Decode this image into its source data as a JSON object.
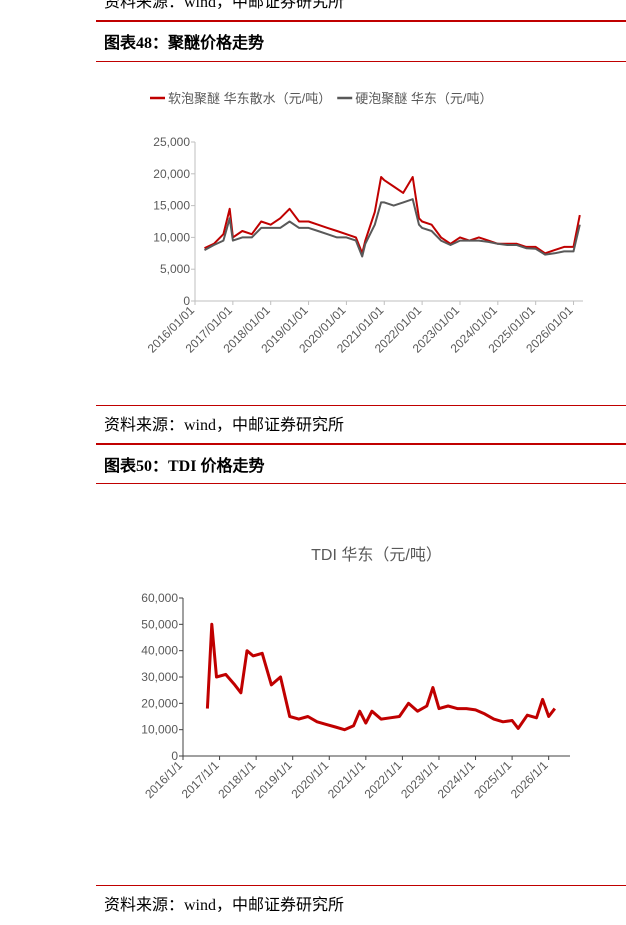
{
  "top_source": "资料来源：wind，中邮证券研究所",
  "captions": [
    "图表48：聚醚价格走势",
    "图表50：TDI 价格走势"
  ],
  "sources": [
    "资料来源：wind，中邮证券研究所",
    "资料来源：wind，中邮证券研究所"
  ],
  "chart_data": [
    {
      "type": "line",
      "x": [
        "2016/04/01",
        "2016/07/01",
        "2016/10/01",
        "2016/12/01",
        "2017/01/01",
        "2017/04/01",
        "2017/07/01",
        "2017/10/01",
        "2018/01/01",
        "2018/04/01",
        "2018/07/01",
        "2018/10/01",
        "2019/01/01",
        "2019/04/01",
        "2019/07/01",
        "2019/10/01",
        "2020/01/01",
        "2020/04/01",
        "2020/06/01",
        "2020/07/01",
        "2020/10/01",
        "2020/12/01",
        "2021/01/01",
        "2021/04/01",
        "2021/07/01",
        "2021/10/01",
        "2021/12/01",
        "2022/01/01",
        "2022/04/01",
        "2022/07/01",
        "2022/10/01",
        "2023/01/01",
        "2023/04/01",
        "2023/07/01",
        "2023/10/01",
        "2024/01/01",
        "2024/04/01",
        "2024/07/01",
        "2024/10/01",
        "2025/01/01",
        "2025/04/01",
        "2025/07/01",
        "2025/10/01",
        "2026/01/01",
        "2026/03/01"
      ],
      "series": [
        {
          "name": "软泡聚醚 华东散水（元/吨）",
          "color": "#c00000",
          "values": [
            8300,
            9000,
            10500,
            14500,
            10000,
            11000,
            10500,
            12500,
            12000,
            13000,
            14500,
            12500,
            12500,
            12000,
            11500,
            11000,
            10500,
            10000,
            7500,
            9500,
            14000,
            19500,
            19000,
            18000,
            17000,
            19500,
            13000,
            12500,
            12000,
            10000,
            9000,
            10000,
            9500,
            10000,
            9500,
            9000,
            9000,
            9000,
            8500,
            8500,
            7500,
            8000,
            8500,
            8500,
            13500
          ]
        },
        {
          "name": "硬泡聚醚 华东（元/吨）",
          "color": "#595959",
          "values": [
            8000,
            8800,
            9500,
            13000,
            9500,
            10000,
            10000,
            11500,
            11500,
            11500,
            12500,
            11500,
            11500,
            11000,
            10500,
            10000,
            10000,
            9500,
            7000,
            9000,
            12000,
            15500,
            15500,
            15000,
            15500,
            16000,
            12000,
            11500,
            11000,
            9500,
            8800,
            9500,
            9500,
            9500,
            9300,
            9000,
            8800,
            8800,
            8300,
            8200,
            7300,
            7500,
            7800,
            7800,
            12000
          ]
        }
      ],
      "xlim": [
        "2016/01/01",
        "2026/04/01"
      ],
      "xticks": [
        "2016/01/01",
        "2017/01/01",
        "2018/01/01",
        "2019/01/01",
        "2020/01/01",
        "2021/01/01",
        "2022/01/01",
        "2023/01/01",
        "2024/01/01",
        "2025/01/01",
        "2026/01/01"
      ],
      "ylim": [
        0,
        25000
      ],
      "yticks": [
        0,
        {
          "value": 5000,
          "label": "5,000"
        },
        {
          "value": 10000,
          "label": "10,000"
        },
        {
          "value": 15000,
          "label": "15,000"
        },
        {
          "value": 20000,
          "label": "20,000"
        },
        {
          "value": 25000,
          "label": "25,000"
        }
      ],
      "grid": false,
      "legend": "top"
    },
    {
      "type": "line",
      "title": "TDI 华东（元/吨）",
      "x": [
        "2016/9/1",
        "2016/10/15",
        "2016/12/1",
        "2017/3/1",
        "2017/6/1",
        "2017/8/1",
        "2017/10/1",
        "2017/12/1",
        "2018/3/1",
        "2018/6/1",
        "2018/9/1",
        "2018/12/1",
        "2019/3/1",
        "2019/6/1",
        "2019/9/1",
        "2019/12/1",
        "2020/3/1",
        "2020/6/1",
        "2020/9/1",
        "2020/11/1",
        "2021/1/1",
        "2021/3/1",
        "2021/6/1",
        "2021/9/1",
        "2021/12/1",
        "2022/3/1",
        "2022/6/1",
        "2022/9/1",
        "2022/11/1",
        "2023/1/1",
        "2023/4/1",
        "2023/7/1",
        "2023/10/1",
        "2024/1/1",
        "2024/4/1",
        "2024/7/1",
        "2024/10/1",
        "2025/1/1",
        "2025/3/1",
        "2025/6/1",
        "2025/9/1",
        "2025/11/1",
        "2026/1/1",
        "2026/3/1"
      ],
      "series": [
        {
          "color": "#c00000",
          "values": [
            18000,
            50000,
            30000,
            31000,
            27000,
            24000,
            40000,
            38000,
            39000,
            27000,
            30000,
            15000,
            14000,
            15000,
            13000,
            12000,
            11000,
            10000,
            11500,
            17000,
            12500,
            17000,
            14000,
            14500,
            15000,
            20000,
            17000,
            19000,
            26000,
            18000,
            19000,
            18000,
            18000,
            17500,
            16000,
            14000,
            13000,
            13500,
            10500,
            15500,
            14500,
            21500,
            15000,
            18000
          ]
        }
      ],
      "xlim": [
        "2016/1/1",
        "2026/8/1"
      ],
      "xticks": [
        "2016/1/1",
        "2017/1/1",
        "2018/1/1",
        "2019/1/1",
        "2020/1/1",
        "2021/1/1",
        "2022/1/1",
        "2023/1/1",
        "2024/1/1",
        "2025/1/1",
        "2026/1/1"
      ],
      "ylim": [
        0,
        60000
      ],
      "yticks": [
        0,
        {
          "value": 10000,
          "label": "10,000"
        },
        {
          "value": 20000,
          "label": "20,000"
        },
        {
          "value": 30000,
          "label": "30,000"
        },
        {
          "value": 40000,
          "label": "40,000"
        },
        {
          "value": 50000,
          "label": "50,000"
        },
        {
          "value": 60000,
          "label": "60,000"
        }
      ],
      "grid": false
    }
  ]
}
